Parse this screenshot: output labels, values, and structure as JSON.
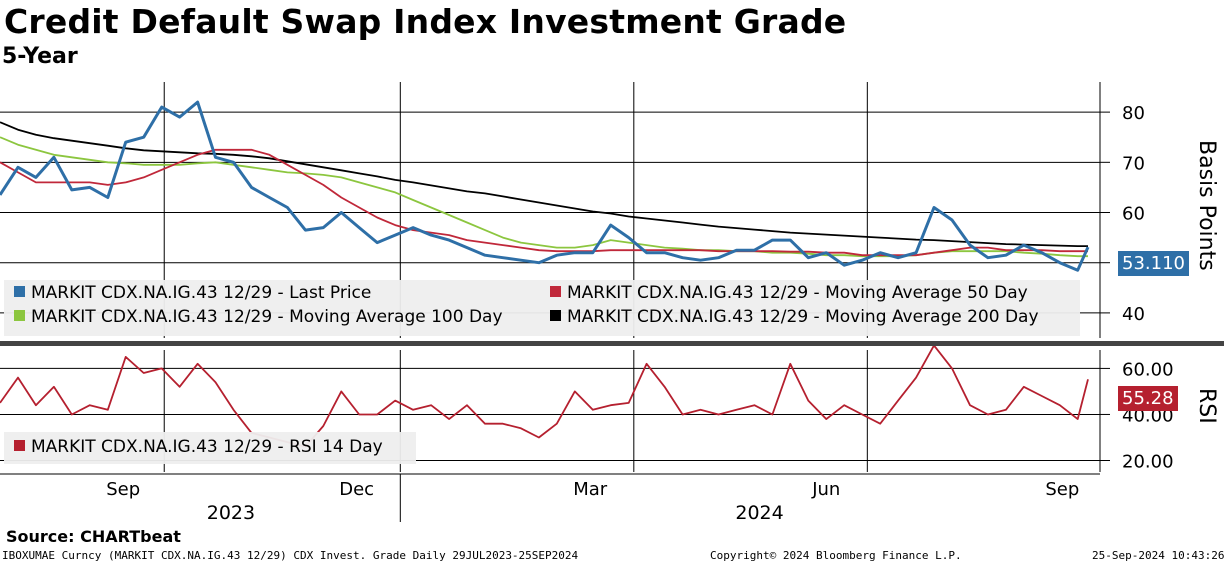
{
  "title": "Credit Default Swap Index Investment Grade",
  "subtitle": "5-Year",
  "source": "Source: CHARTbeat",
  "footer": {
    "left": "IBOXUMAE Curncy (MARKIT CDX.NA.IG.43 12/29) CDX Invest. Grade  Daily 29JUL2023-25SEP2024",
    "center": "Copyright© 2024 Bloomberg Finance L.P.",
    "right": "25-Sep-2024 10:43:26"
  },
  "colors": {
    "last": "#2e6fa7",
    "ma50": "#c0283a",
    "ma100": "#8cc63f",
    "ma200": "#000000",
    "rsi": "#b5202f"
  },
  "chart_data": [
    {
      "type": "line",
      "y_axis_label": "Basis Points",
      "ylim": [
        35,
        86
      ],
      "yticks": [
        40,
        50,
        60,
        70,
        80
      ],
      "x_month_ticks": [
        "Sep",
        "Dec",
        "Mar",
        "Jun",
        "Sep"
      ],
      "x_year_labels": [
        "2023",
        "2024"
      ],
      "last_value_label": "53.110",
      "legend": [
        "MARKIT CDX.NA.IG.43 12/29 - Last Price",
        "MARKIT CDX.NA.IG.43 12/29 - Moving Average 50 Day",
        "MARKIT CDX.NA.IG.43 12/29 - Moving Average 100 Day",
        "MARKIT CDX.NA.IG.43 12/29 - Moving Average 200 Day"
      ],
      "x": [
        "2023-07-29",
        "2023-08-05",
        "2023-08-12",
        "2023-08-19",
        "2023-08-26",
        "2023-09-02",
        "2023-09-09",
        "2023-09-16",
        "2023-09-23",
        "2023-09-30",
        "2023-10-07",
        "2023-10-14",
        "2023-10-21",
        "2023-10-28",
        "2023-11-04",
        "2023-11-11",
        "2023-11-18",
        "2023-11-25",
        "2023-12-02",
        "2023-12-09",
        "2023-12-16",
        "2023-12-23",
        "2023-12-30",
        "2024-01-06",
        "2024-01-13",
        "2024-01-20",
        "2024-01-27",
        "2024-02-03",
        "2024-02-10",
        "2024-02-17",
        "2024-02-24",
        "2024-03-02",
        "2024-03-09",
        "2024-03-16",
        "2024-03-23",
        "2024-03-30",
        "2024-04-06",
        "2024-04-13",
        "2024-04-20",
        "2024-04-27",
        "2024-05-04",
        "2024-05-11",
        "2024-05-18",
        "2024-05-25",
        "2024-06-01",
        "2024-06-08",
        "2024-06-15",
        "2024-06-22",
        "2024-06-29",
        "2024-07-06",
        "2024-07-13",
        "2024-07-20",
        "2024-07-27",
        "2024-08-03",
        "2024-08-10",
        "2024-08-17",
        "2024-08-24",
        "2024-08-31",
        "2024-09-07",
        "2024-09-14",
        "2024-09-21",
        "2024-09-25"
      ],
      "series": [
        {
          "name": "MARKIT CDX.NA.IG.43 12/29 - Last Price",
          "color_key": "last",
          "values": [
            63.5,
            69.0,
            67.0,
            71.0,
            64.5,
            65.0,
            63.0,
            74.0,
            75.0,
            81.0,
            79.0,
            82.0,
            71.0,
            70.0,
            65.0,
            63.0,
            61.0,
            56.5,
            57.0,
            60.0,
            57.0,
            54.0,
            55.5,
            57.0,
            55.5,
            54.5,
            53.0,
            51.5,
            51.0,
            50.5,
            50.0,
            51.5,
            52.0,
            52.0,
            57.5,
            55.0,
            52.0,
            52.0,
            51.0,
            50.5,
            51.0,
            52.5,
            52.5,
            54.5,
            54.5,
            51.0,
            52.0,
            49.5,
            50.5,
            52.0,
            51.0,
            52.0,
            61.0,
            58.5,
            53.5,
            51.0,
            51.5,
            53.5,
            52.0,
            50.0,
            48.5,
            53.1
          ]
        },
        {
          "name": "MARKIT CDX.NA.IG.43 12/29 - Moving Average 50 Day",
          "color_key": "ma50",
          "values": [
            70.0,
            68.0,
            66.0,
            66.0,
            66.0,
            66.0,
            65.5,
            66.0,
            67.0,
            68.5,
            70.0,
            71.5,
            72.5,
            72.5,
            72.5,
            71.5,
            69.5,
            67.5,
            65.5,
            63.0,
            61.0,
            59.0,
            57.5,
            56.5,
            56.0,
            55.5,
            54.5,
            54.0,
            53.5,
            53.0,
            52.5,
            52.3,
            52.3,
            52.3,
            52.5,
            52.5,
            52.5,
            52.5,
            52.5,
            52.5,
            52.3,
            52.3,
            52.3,
            52.3,
            52.2,
            52.2,
            52.0,
            52.0,
            51.5,
            51.5,
            51.5,
            51.5,
            52.0,
            52.5,
            53.0,
            53.0,
            52.5,
            52.5,
            52.5,
            52.3,
            52.3,
            52.3
          ]
        },
        {
          "name": "MARKIT CDX.NA.IG.43 12/29 - Moving Average 100 Day",
          "color_key": "ma100",
          "values": [
            75.0,
            73.5,
            72.5,
            71.5,
            71.0,
            70.5,
            70.0,
            69.8,
            69.5,
            69.5,
            69.5,
            69.8,
            70.0,
            69.5,
            69.0,
            68.5,
            68.0,
            67.8,
            67.5,
            67.0,
            66.0,
            65.0,
            64.0,
            62.5,
            61.0,
            59.5,
            58.0,
            56.5,
            55.0,
            54.0,
            53.5,
            53.0,
            53.0,
            53.5,
            54.5,
            54.0,
            53.5,
            53.0,
            52.8,
            52.5,
            52.5,
            52.3,
            52.3,
            52.0,
            52.0,
            51.8,
            51.5,
            51.5,
            51.3,
            51.3,
            51.3,
            51.5,
            52.0,
            52.3,
            52.3,
            52.3,
            52.3,
            52.0,
            51.8,
            51.5,
            51.3,
            51.3
          ]
        },
        {
          "name": "MARKIT CDX.NA.IG.43 12/29 - Moving Average 200 Day",
          "color_key": "ma200",
          "values": [
            78.0,
            76.5,
            75.5,
            74.8,
            74.3,
            73.8,
            73.3,
            72.8,
            72.4,
            72.2,
            72.0,
            71.8,
            71.7,
            71.5,
            71.2,
            70.8,
            70.2,
            69.6,
            69.0,
            68.4,
            67.8,
            67.2,
            66.5,
            66.0,
            65.4,
            64.8,
            64.2,
            63.8,
            63.2,
            62.6,
            62.0,
            61.4,
            60.8,
            60.2,
            59.8,
            59.2,
            58.8,
            58.4,
            58.0,
            57.6,
            57.2,
            56.9,
            56.6,
            56.3,
            56.0,
            55.8,
            55.6,
            55.4,
            55.2,
            55.0,
            54.8,
            54.6,
            54.5,
            54.3,
            54.1,
            53.9,
            53.7,
            53.6,
            53.5,
            53.4,
            53.3,
            53.3
          ]
        }
      ]
    },
    {
      "type": "line",
      "y_axis_label": "RSI",
      "ylim": [
        15,
        68
      ],
      "yticks": [
        20,
        40,
        60
      ],
      "ytick_labels": [
        "20.00",
        "40.00",
        "60.00"
      ],
      "last_value_label": "55.28",
      "legend": [
        "MARKIT CDX.NA.IG.43 12/29 - RSI 14 Day"
      ],
      "x": [
        "2023-07-29",
        "2023-08-05",
        "2023-08-12",
        "2023-08-19",
        "2023-08-26",
        "2023-09-02",
        "2023-09-09",
        "2023-09-16",
        "2023-09-23",
        "2023-09-30",
        "2023-10-07",
        "2023-10-14",
        "2023-10-21",
        "2023-10-28",
        "2023-11-04",
        "2023-11-11",
        "2023-11-18",
        "2023-11-25",
        "2023-12-02",
        "2023-12-09",
        "2023-12-16",
        "2023-12-23",
        "2023-12-30",
        "2024-01-06",
        "2024-01-13",
        "2024-01-20",
        "2024-01-27",
        "2024-02-03",
        "2024-02-10",
        "2024-02-17",
        "2024-02-24",
        "2024-03-02",
        "2024-03-09",
        "2024-03-16",
        "2024-03-23",
        "2024-03-30",
        "2024-04-06",
        "2024-04-13",
        "2024-04-20",
        "2024-04-27",
        "2024-05-04",
        "2024-05-11",
        "2024-05-18",
        "2024-05-25",
        "2024-06-01",
        "2024-06-08",
        "2024-06-15",
        "2024-06-22",
        "2024-06-29",
        "2024-07-06",
        "2024-07-13",
        "2024-07-20",
        "2024-07-27",
        "2024-08-03",
        "2024-08-10",
        "2024-08-17",
        "2024-08-24",
        "2024-08-31",
        "2024-09-07",
        "2024-09-14",
        "2024-09-21",
        "2024-09-25"
      ],
      "series": [
        {
          "name": "MARKIT CDX.NA.IG.43 12/29 - RSI 14 Day",
          "color_key": "rsi",
          "values": [
            45,
            56,
            44,
            52,
            40,
            44,
            42,
            65,
            58,
            60,
            52,
            62,
            54,
            42,
            32,
            30,
            28,
            26,
            35,
            50,
            40,
            40,
            46,
            42,
            44,
            38,
            44,
            36,
            36,
            34,
            30,
            36,
            50,
            42,
            44,
            45,
            62,
            52,
            40,
            42,
            40,
            42,
            44,
            40,
            62,
            46,
            38,
            44,
            40,
            36,
            46,
            56,
            70,
            60,
            44,
            40,
            42,
            52,
            48,
            44,
            38,
            55.28
          ]
        }
      ]
    }
  ]
}
